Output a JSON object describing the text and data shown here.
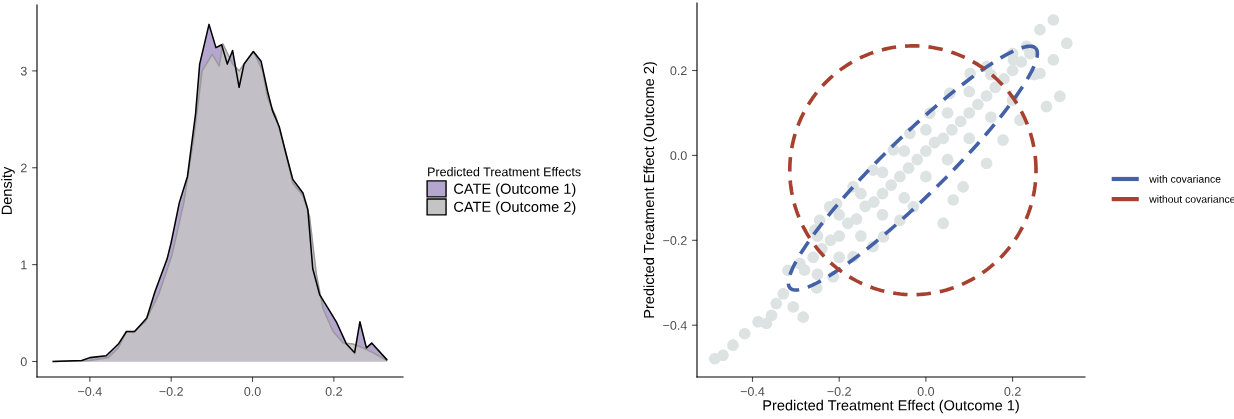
{
  "chart_data": [
    {
      "type": "area",
      "ylabel": "Density",
      "legend_title": "Predicted Treatment Effects",
      "legend": "right",
      "grid": false,
      "xlim": [
        -0.53,
        0.37
      ],
      "xticks": [
        {
          "value": -0.4,
          "label": "−0.4"
        },
        {
          "value": -0.2,
          "label": "−0.2"
        },
        {
          "value": 0,
          "label": "0.0"
        },
        {
          "value": 0.2,
          "label": "0.2"
        }
      ],
      "ylim": [
        -0.16,
        3.68
      ],
      "yticks": [
        0,
        1,
        2,
        3
      ],
      "series": [
        {
          "name": "CATE (Outcome 1)",
          "color": "#b5a6d0",
          "x": [
            -0.49,
            -0.42,
            -0.4,
            -0.36,
            -0.33,
            -0.31,
            -0.29,
            -0.26,
            -0.24,
            -0.21,
            -0.2,
            -0.18,
            -0.16,
            -0.14,
            -0.13,
            -0.107,
            -0.09,
            -0.076,
            -0.062,
            -0.049,
            -0.033,
            -0.021,
            0.002,
            0.021,
            0.037,
            0.049,
            0.066,
            0.082,
            0.099,
            0.124,
            0.136,
            0.148,
            0.165,
            0.19,
            0.206,
            0.231,
            0.251,
            0.264,
            0.28,
            0.293,
            0.33
          ],
          "values": [
            0.0,
            0.01,
            0.04,
            0.06,
            0.18,
            0.31,
            0.31,
            0.45,
            0.72,
            1.06,
            1.23,
            1.64,
            1.91,
            2.56,
            3.07,
            3.48,
            3.24,
            3.27,
            3.07,
            3.21,
            2.83,
            3.07,
            3.2,
            3.1,
            2.79,
            2.59,
            2.42,
            2.15,
            1.88,
            1.74,
            1.57,
            0.96,
            0.69,
            0.52,
            0.41,
            0.18,
            0.09,
            0.41,
            0.14,
            0.19,
            0.02
          ]
        },
        {
          "name": "CATE (Outcome 2)",
          "color": "#c4c4c4",
          "x": [
            -0.49,
            -0.4,
            -0.355,
            -0.33,
            -0.31,
            -0.293,
            -0.264,
            -0.231,
            -0.198,
            -0.169,
            -0.144,
            -0.124,
            -0.099,
            -0.082,
            -0.073,
            -0.049,
            -0.033,
            -0.016,
            0.002,
            0.025,
            0.037,
            0.058,
            0.082,
            0.099,
            0.124,
            0.14,
            0.157,
            0.173,
            0.198,
            0.223,
            0.247,
            0.272,
            0.297,
            0.33
          ],
          "values": [
            0.0,
            0.01,
            0.04,
            0.14,
            0.31,
            0.3,
            0.41,
            0.69,
            1.1,
            1.64,
            2.32,
            3.0,
            3.17,
            3.05,
            3.28,
            3.07,
            3.0,
            3.1,
            3.2,
            3.0,
            2.72,
            2.52,
            2.15,
            1.84,
            1.71,
            1.5,
            0.9,
            0.55,
            0.31,
            0.19,
            0.18,
            0.14,
            0.09,
            0.01
          ]
        }
      ]
    },
    {
      "type": "scatter",
      "xlabel": "Predicted Treatment Effect (Outcome 1)",
      "ylabel": "Predicted Treatment Effect (Outcome 2)",
      "grid": false,
      "xlim": [
        -0.528,
        0.367
      ],
      "xticks": [
        {
          "value": -0.4,
          "label": "−0.4"
        },
        {
          "value": -0.2,
          "label": "−0.2"
        },
        {
          "value": 0,
          "label": "0.0"
        },
        {
          "value": 0.2,
          "label": "0.2"
        }
      ],
      "ylim": [
        -0.522,
        0.359
      ],
      "yticks": [
        {
          "value": -0.4,
          "label": "−0.4"
        },
        {
          "value": -0.2,
          "label": "−0.2"
        },
        {
          "value": 0,
          "label": "0.0"
        },
        {
          "value": 0.2,
          "label": "0.2"
        }
      ],
      "legend": false,
      "series": [
        {
          "type": "scatter",
          "color": "#dde3e2",
          "marker": "circle",
          "x": [
            -0.487,
            -0.468,
            -0.445,
            -0.418,
            -0.387,
            -0.368,
            -0.356,
            -0.345,
            -0.329,
            -0.306,
            -0.283,
            -0.318,
            -0.291,
            -0.256,
            -0.222,
            -0.252,
            -0.214,
            -0.168,
            -0.122,
            -0.098,
            -0.06,
            -0.029,
            0.04,
            0.063,
            0.086,
            0.14,
            0.178,
            0.217,
            0.278,
            0.309,
            0.325,
            0.294,
            0.263,
            0.232,
            0.202,
            0.294,
            0.263,
            0.14,
            0.102,
            0.055,
            0.009,
            -0.037,
            -0.075,
            -0.122,
            -0.168,
            -0.206,
            -0.245,
            -0.28,
            -0.26,
            -0.24,
            -0.22,
            -0.2,
            -0.18,
            -0.16,
            -0.14,
            -0.12,
            -0.1,
            -0.08,
            -0.06,
            -0.04,
            -0.02,
            0.0,
            0.02,
            0.04,
            0.06,
            0.08,
            0.1,
            0.12,
            0.14,
            0.16,
            0.18,
            0.2,
            0.22,
            0.24,
            -0.25,
            -0.2,
            -0.15,
            -0.1,
            -0.05,
            0.0,
            0.05,
            0.1,
            0.15,
            0.2,
            -0.25,
            -0.2,
            -0.15,
            -0.1,
            -0.05,
            0.0,
            0.05,
            0.1,
            0.15,
            0.2,
            0.25
          ],
          "values": [
            -0.479,
            -0.471,
            -0.447,
            -0.42,
            -0.392,
            -0.396,
            -0.377,
            -0.349,
            -0.326,
            -0.357,
            -0.381,
            -0.271,
            -0.255,
            -0.176,
            -0.121,
            -0.312,
            -0.286,
            -0.239,
            -0.215,
            -0.192,
            -0.153,
            -0.121,
            -0.16,
            -0.105,
            -0.074,
            -0.019,
            0.036,
            0.083,
            0.115,
            0.139,
            0.264,
            0.319,
            0.296,
            0.257,
            0.225,
            0.225,
            0.193,
            0.209,
            0.193,
            0.146,
            0.099,
            0.052,
            0.013,
            -0.035,
            -0.074,
            -0.114,
            -0.153,
            -0.27,
            -0.24,
            -0.22,
            -0.2,
            -0.19,
            -0.16,
            -0.15,
            -0.12,
            -0.11,
            -0.09,
            -0.07,
            -0.05,
            -0.03,
            -0.01,
            0.01,
            0.03,
            0.04,
            0.06,
            0.08,
            0.1,
            0.12,
            0.14,
            0.16,
            0.18,
            0.2,
            0.22,
            0.24,
            -0.19,
            -0.14,
            -0.09,
            -0.04,
            0.01,
            0.06,
            0.1,
            0.15,
            0.19,
            0.24,
            -0.28,
            -0.24,
            -0.19,
            -0.14,
            -0.1,
            -0.05,
            -0.01,
            0.04,
            0.09,
            0.13,
            0.19
          ]
        }
      ],
      "annotations": [
        "with covariance",
        "without covariance"
      ]
    }
  ]
}
